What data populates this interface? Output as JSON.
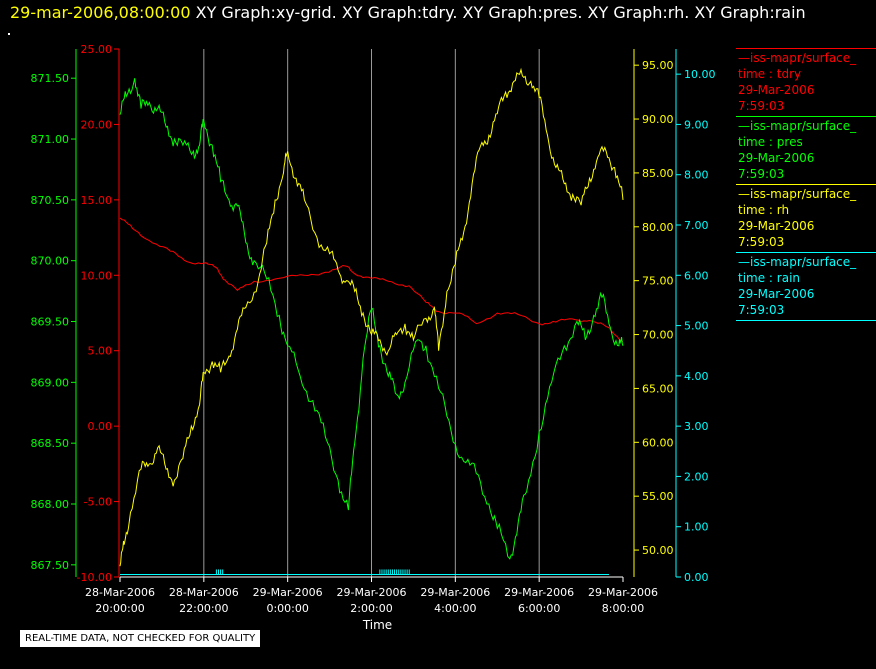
{
  "header": {
    "timestamp": "29-mar-2006,08:00:00",
    "titles": "XY Graph:xy-grid.  XY Graph:tdry.  XY Graph:pres.  XY Graph:rh.  XY Graph:rain"
  },
  "colors": {
    "tdry": "#ff0000",
    "pres": "#00ff00",
    "rh": "#ffff00",
    "rain": "#00ffff",
    "grid": "#9a9a9a",
    "axis_x": "#ffffff"
  },
  "legend": [
    {
      "name": "—iss-mapr/surface_",
      "var": "time : tdry",
      "date": "29-Mar-2006",
      "time": "7:59:03",
      "color": "#ff0000"
    },
    {
      "name": "—iss-mapr/surface_",
      "var": "time : pres",
      "date": "29-Mar-2006",
      "time": "7:59:03",
      "color": "#00ff00"
    },
    {
      "name": "—iss-mapr/surface_",
      "var": "time : rh",
      "date": "29-Mar-2006",
      "time": "7:59:03",
      "color": "#ffff00"
    },
    {
      "name": "—iss-mapr/surface_",
      "var": "time : rain",
      "date": "29-Mar-2006",
      "time": "7:59:03",
      "color": "#00ffff"
    }
  ],
  "footer_note": "REAL-TIME DATA, NOT CHECKED FOR QUALITY",
  "chart_data": {
    "type": "line",
    "xlabel": "Time",
    "x_ticks": [
      [
        "28-Mar-2006",
        "20:00:00"
      ],
      [
        "28-Mar-2006",
        "22:00:00"
      ],
      [
        "29-Mar-2006",
        "0:00:00"
      ],
      [
        "29-Mar-2006",
        "2:00:00"
      ],
      [
        "29-Mar-2006",
        "4:00:00"
      ],
      [
        "29-Mar-2006",
        "6:00:00"
      ],
      [
        "29-Mar-2006",
        "8:00:00"
      ]
    ],
    "xlim_hours": [
      0,
      12
    ],
    "axes": {
      "pres": {
        "ylim": [
          867.4,
          871.74
        ],
        "ticks": [
          "867.50",
          "868.00",
          "868.50",
          "869.00",
          "869.50",
          "870.00",
          "870.50",
          "871.00",
          "871.50"
        ]
      },
      "tdry": {
        "ylim": [
          -10,
          25
        ],
        "ticks": [
          "-10.00",
          "-5.00",
          "0.00",
          "5.00",
          "10.00",
          "15.00",
          "20.00",
          "25.00"
        ]
      },
      "rh": {
        "ylim": [
          47.5,
          96.5
        ],
        "ticks": [
          "50.00",
          "55.00",
          "60.00",
          "65.00",
          "70.00",
          "75.00",
          "80.00",
          "85.00",
          "90.00",
          "95.00"
        ]
      },
      "rain": {
        "ylim": [
          0,
          10.5
        ],
        "ticks": [
          "0.00",
          "1.00",
          "2.00",
          "3.00",
          "4.00",
          "5.00",
          "6.00",
          "7.00",
          "8.00",
          "9.00",
          "10.00"
        ]
      }
    },
    "series": [
      {
        "key": "tdry",
        "points": [
          [
            0,
            13.8
          ],
          [
            0.3,
            13.1
          ],
          [
            0.7,
            12.3
          ],
          [
            1.2,
            11.6
          ],
          [
            1.6,
            10.9
          ],
          [
            2.0,
            10.8
          ],
          [
            2.3,
            10.5
          ],
          [
            2.5,
            9.7
          ],
          [
            2.8,
            9.0
          ],
          [
            3.2,
            9.6
          ],
          [
            3.8,
            9.8
          ],
          [
            4.4,
            10.0
          ],
          [
            4.9,
            10.2
          ],
          [
            5.4,
            10.6
          ],
          [
            5.6,
            10.1
          ],
          [
            6.0,
            9.8
          ],
          [
            6.4,
            9.6
          ],
          [
            6.9,
            9.3
          ],
          [
            7.3,
            8.2
          ],
          [
            7.6,
            7.6
          ],
          [
            8.1,
            7.5
          ],
          [
            8.5,
            6.8
          ],
          [
            9.0,
            7.5
          ],
          [
            9.5,
            7.4
          ],
          [
            10.0,
            6.8
          ],
          [
            10.4,
            6.9
          ],
          [
            10.8,
            7.1
          ],
          [
            11.2,
            7.0
          ],
          [
            11.6,
            6.6
          ],
          [
            12.0,
            5.6
          ],
          [
            12.3,
            4.4
          ],
          [
            12.6,
            3.8
          ],
          [
            13.0,
            3.0
          ],
          [
            13.4,
            2.5
          ],
          [
            13.7,
            1.8
          ],
          [
            14.0,
            1.5
          ]
        ]
      },
      {
        "key": "pres",
        "points": [
          [
            0,
            871.2
          ],
          [
            0.15,
            871.35
          ],
          [
            0.35,
            871.5
          ],
          [
            0.5,
            871.25
          ],
          [
            0.7,
            871.3
          ],
          [
            0.9,
            871.25
          ],
          [
            1.1,
            871.1
          ],
          [
            1.3,
            871.0
          ],
          [
            1.5,
            870.95
          ],
          [
            1.75,
            870.9
          ],
          [
            1.9,
            870.95
          ],
          [
            2.0,
            871.15
          ],
          [
            2.2,
            870.95
          ],
          [
            2.4,
            870.65
          ],
          [
            2.6,
            870.5
          ],
          [
            2.8,
            870.45
          ],
          [
            3.0,
            870.15
          ],
          [
            3.2,
            870.0
          ],
          [
            3.5,
            869.85
          ],
          [
            3.8,
            869.55
          ],
          [
            4.0,
            869.3
          ],
          [
            4.3,
            869.05
          ],
          [
            4.6,
            868.85
          ],
          [
            4.9,
            868.55
          ],
          [
            5.2,
            868.2
          ],
          [
            5.45,
            867.95
          ],
          [
            5.6,
            868.5
          ],
          [
            5.8,
            869.2
          ],
          [
            6.0,
            869.6
          ],
          [
            6.2,
            869.3
          ],
          [
            6.4,
            869.05
          ],
          [
            6.6,
            868.9
          ],
          [
            6.8,
            869.0
          ],
          [
            7.1,
            869.35
          ],
          [
            7.3,
            869.3
          ],
          [
            7.6,
            868.95
          ],
          [
            7.9,
            868.6
          ],
          [
            8.2,
            868.35
          ],
          [
            8.5,
            868.25
          ],
          [
            8.8,
            868.0
          ],
          [
            9.0,
            867.8
          ],
          [
            9.3,
            867.55
          ],
          [
            9.5,
            867.85
          ],
          [
            9.7,
            868.1
          ],
          [
            10.0,
            868.6
          ],
          [
            10.3,
            869.0
          ],
          [
            10.6,
            869.3
          ],
          [
            10.9,
            869.5
          ],
          [
            11.1,
            869.35
          ],
          [
            11.3,
            869.55
          ],
          [
            11.5,
            869.7
          ],
          [
            11.7,
            869.45
          ],
          [
            11.9,
            869.3
          ],
          [
            12.0,
            869.3
          ],
          [
            12.2,
            869.5
          ],
          [
            12.4,
            869.35
          ],
          [
            12.6,
            869.4
          ],
          [
            12.8,
            869.3
          ],
          [
            13.0,
            869.45
          ],
          [
            13.3,
            869.4
          ],
          [
            13.6,
            869.5
          ],
          [
            14.0,
            869.2
          ]
        ]
      },
      {
        "key": "rh",
        "points": [
          [
            0,
            48.5
          ],
          [
            0.1,
            50.5
          ],
          [
            0.25,
            53.5
          ],
          [
            0.5,
            57.5
          ],
          [
            0.7,
            58.0
          ],
          [
            0.9,
            59.5
          ],
          [
            1.1,
            57.5
          ],
          [
            1.3,
            56.5
          ],
          [
            1.5,
            58.5
          ],
          [
            1.7,
            61.5
          ],
          [
            1.9,
            63.5
          ],
          [
            2.0,
            66.5
          ],
          [
            2.2,
            67.5
          ],
          [
            2.4,
            66.5
          ],
          [
            2.6,
            68.0
          ],
          [
            2.8,
            70.5
          ],
          [
            3.0,
            72.5
          ],
          [
            3.3,
            75.0
          ],
          [
            3.5,
            78.5
          ],
          [
            3.7,
            82.5
          ],
          [
            3.9,
            85.0
          ],
          [
            4.0,
            87.0
          ],
          [
            4.2,
            84.5
          ],
          [
            4.4,
            82.5
          ],
          [
            4.7,
            79.0
          ],
          [
            5.0,
            77.5
          ],
          [
            5.2,
            76.0
          ],
          [
            5.4,
            75.0
          ],
          [
            5.6,
            74.0
          ],
          [
            5.8,
            72.0
          ],
          [
            6.0,
            70.0
          ],
          [
            6.2,
            69.5
          ],
          [
            6.4,
            68.5
          ],
          [
            6.6,
            70.0
          ],
          [
            6.8,
            71.0
          ],
          [
            7.0,
            69.5
          ],
          [
            7.3,
            71.5
          ],
          [
            7.5,
            72.5
          ],
          [
            7.6,
            68.5
          ],
          [
            7.8,
            74.0
          ],
          [
            8.0,
            76.5
          ],
          [
            8.2,
            79.5
          ],
          [
            8.4,
            84.0
          ],
          [
            8.6,
            87.5
          ],
          [
            8.8,
            88.5
          ],
          [
            9.0,
            90.5
          ],
          [
            9.2,
            92.5
          ],
          [
            9.4,
            93.5
          ],
          [
            9.6,
            94.0
          ],
          [
            9.8,
            93.5
          ],
          [
            10.0,
            92.0
          ],
          [
            10.2,
            88.5
          ],
          [
            10.4,
            85.5
          ],
          [
            10.6,
            84.0
          ],
          [
            10.8,
            83.0
          ],
          [
            11.0,
            82.0
          ],
          [
            11.2,
            84.5
          ],
          [
            11.4,
            86.5
          ],
          [
            11.6,
            87.0
          ],
          [
            11.8,
            85.5
          ],
          [
            12.0,
            82.5
          ],
          [
            12.2,
            78.5
          ],
          [
            12.4,
            76.0
          ],
          [
            12.6,
            72.0
          ],
          [
            12.8,
            70.0
          ],
          [
            13.0,
            68.5
          ],
          [
            13.2,
            72.0
          ],
          [
            13.4,
            73.5
          ],
          [
            13.7,
            70.0
          ],
          [
            14.0,
            69.5
          ]
        ]
      },
      {
        "key": "rain",
        "points": [
          [
            0,
            0.05
          ],
          [
            14,
            0.05
          ]
        ]
      }
    ]
  }
}
